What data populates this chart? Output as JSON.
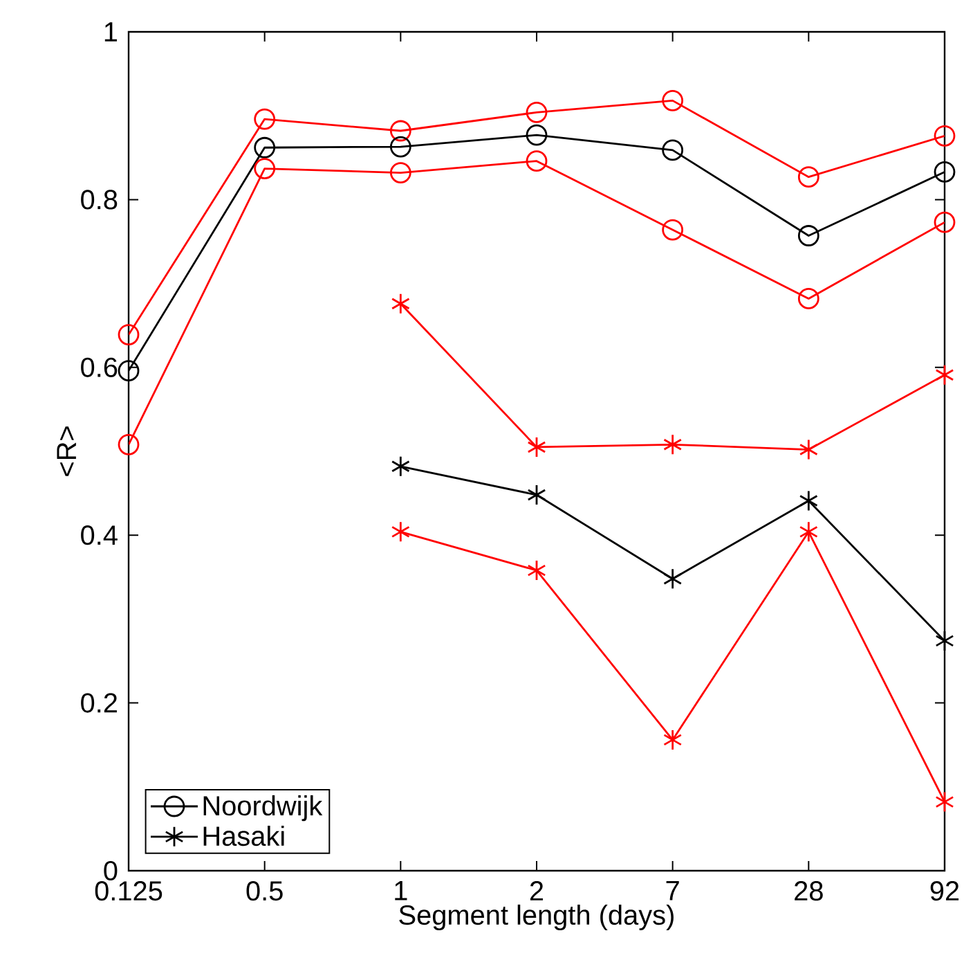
{
  "chart_data": {
    "type": "line",
    "xlabel": "Segment length (days)",
    "ylabel": "<R>",
    "categories": [
      "0.125",
      "0.5",
      "1",
      "2",
      "7",
      "28",
      "92"
    ],
    "ylim": [
      0,
      1
    ],
    "yticks": [
      0,
      0.2,
      0.4,
      0.6,
      0.8,
      1
    ],
    "grid": false,
    "legend": "bottom left",
    "line_style": "solid",
    "series": [
      {
        "color": "#ff0000",
        "marker": "circle",
        "values": [
          0.639,
          0.896,
          0.882,
          0.904,
          0.918,
          0.827,
          0.876
        ]
      },
      {
        "name": "Noordwijk",
        "color": "#000000",
        "marker": "circle",
        "values": [
          0.596,
          0.862,
          0.863,
          0.877,
          0.859,
          0.757,
          0.833
        ]
      },
      {
        "color": "#ff0000",
        "marker": "circle",
        "values": [
          0.508,
          0.837,
          0.832,
          0.846,
          0.764,
          0.682,
          0.773
        ]
      },
      {
        "color": "#ff0000",
        "marker": "cross",
        "values": [
          null,
          null,
          0.676,
          0.505,
          0.508,
          0.502,
          0.591
        ]
      },
      {
        "name": "Hasaki",
        "color": "#000000",
        "marker": "cross",
        "values": [
          null,
          null,
          0.482,
          0.448,
          0.348,
          0.441,
          0.274
        ]
      },
      {
        "color": "#ff0000",
        "marker": "cross",
        "values": [
          null,
          null,
          0.404,
          0.358,
          0.156,
          0.404,
          0.082
        ]
      }
    ]
  }
}
